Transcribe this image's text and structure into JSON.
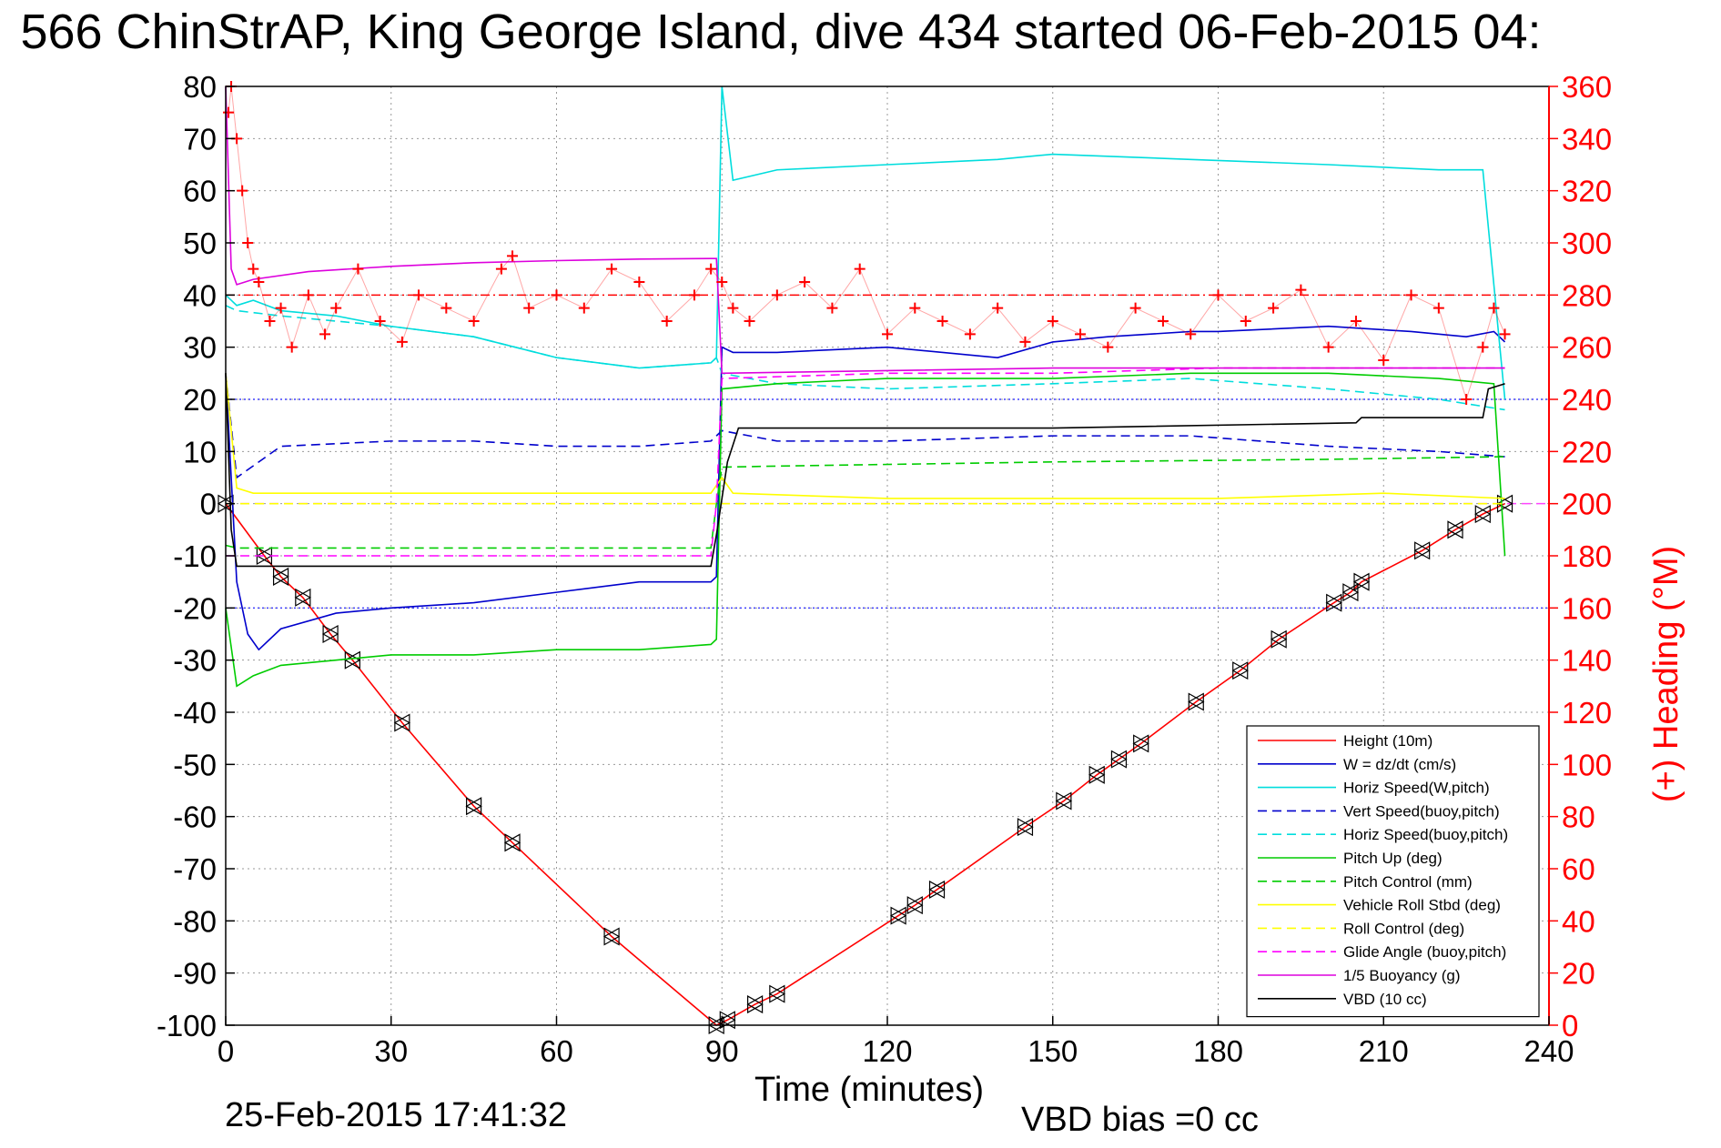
{
  "header": {
    "title": "566 ChinStrAP, King George Island, dive 434 started 06-Feb-2015 04:"
  },
  "footer": {
    "timestamp": "25-Feb-2015 17:41:32",
    "vbd_bias": "VBD bias =0 cc"
  },
  "chart_data": {
    "type": "line",
    "title": "566 ChinStrAP, King George Island, dive 434 started 06-Feb-2015 04:",
    "xlabel": "Time (minutes)",
    "ylabel": "",
    "y2label": "(+) Heading (°M)",
    "xlim": [
      0,
      240
    ],
    "ylim": [
      -100,
      80
    ],
    "y2lim": [
      0,
      360
    ],
    "x_ticks": [
      "0",
      "30",
      "60",
      "90",
      "120",
      "150",
      "180",
      "210",
      "240"
    ],
    "y_ticks": [
      "80",
      "70",
      "60",
      "50",
      "40",
      "30",
      "20",
      "10",
      "0",
      "-10",
      "-20",
      "-30",
      "-40",
      "-50",
      "-60",
      "-70",
      "-80",
      "-90",
      "-100"
    ],
    "y2_ticks": [
      "360",
      "340",
      "320",
      "300",
      "280",
      "260",
      "240",
      "220",
      "200",
      "180",
      "160",
      "140",
      "120",
      "100",
      "80",
      "60",
      "40",
      "20",
      "0"
    ],
    "grid": true,
    "legend_position": "bottom-right",
    "reference_lines": [
      {
        "y": 20,
        "color": "#4040ff",
        "style": "dotted"
      },
      {
        "y": -20,
        "color": "#4040ff",
        "style": "dotted"
      },
      {
        "y": 40,
        "color": "#ff0000",
        "style": "dashdot"
      },
      {
        "y": 0,
        "color": "#ff44ff",
        "style": "dashed"
      }
    ],
    "series": [
      {
        "name": "Height (10m)",
        "color": "#ff0000",
        "style": "solid",
        "marker": "triangle",
        "x": [
          0,
          7,
          10,
          14,
          19,
          23,
          32,
          45,
          52,
          70,
          89,
          91,
          96,
          100,
          122,
          125,
          129,
          145,
          152,
          158,
          162,
          166,
          176,
          184,
          191,
          201,
          204,
          206,
          217,
          223,
          228,
          232
        ],
        "values": [
          0,
          -10,
          -14,
          -18,
          -25,
          -30,
          -42,
          -58,
          -65,
          -83,
          -100,
          -99,
          -96,
          -94,
          -79,
          -77,
          -74,
          -62,
          -57,
          -52,
          -49,
          -46,
          -38,
          -32,
          -26,
          -19,
          -17,
          -15,
          -9,
          -5,
          -2,
          0
        ]
      },
      {
        "name": "W = dz/dt (cm/s)",
        "color": "#0000cc",
        "style": "solid",
        "x": [
          0,
          2,
          4,
          6,
          10,
          20,
          30,
          45,
          60,
          75,
          88,
          89,
          90,
          92,
          100,
          120,
          140,
          150,
          160,
          175,
          180,
          200,
          215,
          225,
          230,
          232
        ],
        "values": [
          25,
          -15,
          -25,
          -28,
          -24,
          -21,
          -20,
          -19,
          -17,
          -15,
          -15,
          -14,
          30,
          29,
          29,
          30,
          28,
          31,
          32,
          33,
          33,
          34,
          33,
          32,
          33,
          31
        ]
      },
      {
        "name": "Horiz Speed(W,pitch)",
        "color": "#00dddd",
        "style": "solid",
        "x": [
          0,
          2,
          5,
          10,
          20,
          30,
          45,
          60,
          75,
          88,
          89,
          90,
          92,
          100,
          120,
          140,
          150,
          175,
          200,
          220,
          228,
          232
        ],
        "values": [
          40,
          38,
          39,
          37,
          36,
          34,
          32,
          28,
          26,
          27,
          28,
          80,
          62,
          64,
          65,
          66,
          67,
          66,
          65,
          64,
          64,
          20
        ]
      },
      {
        "name": "Vert Speed(buoy,pitch)",
        "color": "#0000cc",
        "style": "dashed",
        "x": [
          0,
          2,
          10,
          30,
          45,
          60,
          75,
          88,
          89,
          90,
          100,
          120,
          150,
          175,
          200,
          220,
          232
        ],
        "values": [
          25,
          5,
          11,
          12,
          12,
          11,
          11,
          12,
          13,
          14,
          12,
          12,
          13,
          13,
          11,
          10,
          9
        ]
      },
      {
        "name": "Horiz Speed(buoy,pitch)",
        "color": "#00dddd",
        "style": "dashed",
        "x": [
          0,
          2,
          10,
          30,
          45,
          60,
          75,
          88,
          89,
          90,
          100,
          120,
          150,
          175,
          200,
          220,
          232
        ],
        "values": [
          38,
          37,
          36,
          34,
          32,
          28,
          26,
          27,
          28,
          25,
          23,
          22,
          23,
          24,
          22,
          20,
          18
        ]
      },
      {
        "name": "Pitch Up (deg)",
        "color": "#00cc00",
        "style": "solid",
        "x": [
          0,
          2,
          5,
          10,
          20,
          30,
          45,
          60,
          75,
          88,
          89,
          90,
          100,
          120,
          150,
          175,
          200,
          220,
          230,
          232
        ],
        "values": [
          -20,
          -35,
          -33,
          -31,
          -30,
          -29,
          -29,
          -28,
          -28,
          -27,
          -26,
          22,
          23,
          24,
          24,
          25,
          25,
          24,
          23,
          -10
        ]
      },
      {
        "name": "Pitch Control (mm)",
        "color": "#00cc00",
        "style": "dashed",
        "x": [
          0,
          2,
          10,
          30,
          60,
          88,
          89,
          90,
          100,
          150,
          200,
          232
        ],
        "values": [
          -8,
          -8.5,
          -8.5,
          -8.5,
          -8.5,
          -8.5,
          0,
          7,
          7.2,
          8,
          8.5,
          9
        ]
      },
      {
        "name": "Vehicle Roll Stbd (deg)",
        "color": "#ffff00",
        "style": "solid",
        "x": [
          0,
          2,
          5,
          10,
          30,
          60,
          88,
          90,
          92,
          120,
          150,
          180,
          210,
          232
        ],
        "values": [
          25,
          3,
          2,
          2,
          2,
          2,
          2,
          5,
          2,
          1,
          1,
          1,
          2,
          1
        ]
      },
      {
        "name": "Roll Control (deg)",
        "color": "#ffff00",
        "style": "dashed",
        "x": [
          0,
          2,
          60,
          88,
          90,
          232
        ],
        "values": [
          0,
          0,
          0,
          0,
          0,
          0
        ]
      },
      {
        "name": "Glide Angle (buoy,pitch)",
        "color": "#ff00ff",
        "style": "dashed",
        "x": [
          0,
          88,
          89,
          90,
          120,
          150,
          180,
          210,
          232
        ],
        "values": [
          -10,
          -10,
          0,
          24,
          25,
          25,
          26,
          26,
          26
        ]
      },
      {
        "name": "1/5 Buoyancy (g)",
        "color": "#dd00dd",
        "style": "solid",
        "x": [
          0,
          1,
          2,
          5,
          15,
          30,
          45,
          60,
          75,
          88,
          89,
          90,
          120,
          150,
          232
        ],
        "values": [
          80,
          45,
          42,
          43,
          44.5,
          45.5,
          46.2,
          46.6,
          46.9,
          47,
          47,
          25,
          25.5,
          26,
          26
        ]
      },
      {
        "name": "VBD (10 cc)",
        "color": "#000000",
        "style": "solid",
        "x": [
          0,
          1,
          2,
          88,
          89,
          91,
          93,
          110,
          150,
          205,
          206,
          228,
          229,
          232
        ],
        "values": [
          25,
          -5,
          -12,
          -12,
          -6,
          8,
          14.5,
          14.5,
          14.5,
          15.5,
          16.5,
          16.5,
          22,
          23
        ]
      },
      {
        "name": "Heading",
        "axis": "right",
        "color": "#ff0000",
        "style": "plus-markers",
        "x": [
          0.5,
          1,
          2,
          3,
          4,
          5,
          6,
          8,
          10,
          12,
          15,
          18,
          20,
          24,
          28,
          32,
          35,
          40,
          45,
          50,
          52,
          55,
          60,
          65,
          70,
          75,
          80,
          85,
          88,
          90,
          92,
          95,
          100,
          105,
          110,
          115,
          120,
          125,
          130,
          135,
          140,
          145,
          150,
          155,
          160,
          165,
          170,
          175,
          180,
          185,
          190,
          195,
          200,
          205,
          210,
          215,
          220,
          225,
          228,
          230,
          232
        ],
        "values": [
          350,
          360,
          340,
          320,
          300,
          290,
          285,
          270,
          275,
          260,
          280,
          265,
          275,
          290,
          270,
          262,
          280,
          275,
          270,
          290,
          295,
          275,
          280,
          275,
          290,
          285,
          270,
          280,
          290,
          285,
          275,
          270,
          280,
          285,
          275,
          290,
          265,
          275,
          270,
          265,
          275,
          262,
          270,
          265,
          260,
          275,
          270,
          265,
          280,
          270,
          275,
          282,
          260,
          270,
          255,
          280,
          275,
          240,
          260,
          275,
          265
        ]
      }
    ]
  }
}
